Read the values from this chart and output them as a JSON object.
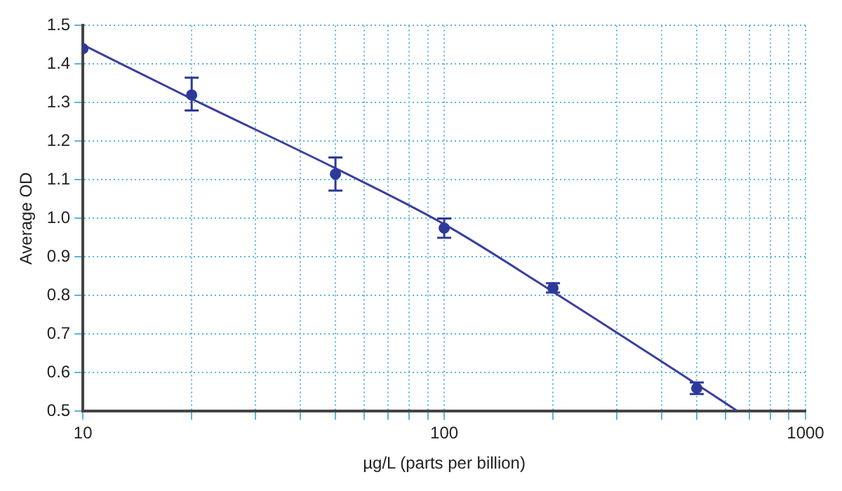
{
  "chart_data": {
    "type": "scatter",
    "xlabel": "µg/L (parts per billion)",
    "ylabel": "Average OD",
    "log": "x",
    "grid": true,
    "legend": false,
    "marker": "circle",
    "xlim": [
      10,
      1000
    ],
    "xticks": [
      10,
      {
        "value": 20,
        "label": null
      },
      {
        "value": 30,
        "label": null
      },
      {
        "value": 40,
        "label": null
      },
      {
        "value": 50,
        "label": null
      },
      {
        "value": 60,
        "label": null
      },
      {
        "value": 70,
        "label": null
      },
      {
        "value": 80,
        "label": null
      },
      {
        "value": 90,
        "label": null
      },
      100,
      {
        "value": 200,
        "label": null
      },
      {
        "value": 300,
        "label": null
      },
      {
        "value": 400,
        "label": null
      },
      {
        "value": 500,
        "label": null
      },
      {
        "value": 600,
        "label": null
      },
      {
        "value": 700,
        "label": null
      },
      {
        "value": 800,
        "label": null
      },
      {
        "value": 900,
        "label": null
      },
      1000
    ],
    "ylim": [
      0.5,
      1.5
    ],
    "yticks": [
      0.5,
      0.6,
      0.7,
      0.8,
      0.9,
      {
        "value": 1,
        "label": "1.0"
      },
      1.1,
      1.2,
      1.3,
      1.4,
      1.5
    ],
    "series": [
      {
        "color": "#2e3a9a",
        "x": [
          10,
          20,
          50,
          100,
          200,
          500
        ],
        "values": [
          1.44,
          1.32,
          1.115,
          0.975,
          0.82,
          0.56
        ],
        "errors": [
          null,
          [
            1.28,
            1.365
          ],
          [
            1.072,
            1.158
          ],
          [
            0.95,
            1.0
          ],
          [
            0.808,
            0.832
          ],
          [
            0.545,
            0.575
          ]
        ]
      },
      {
        "type": "line",
        "color": "#3a3f9e",
        "line_style": "solid",
        "marker": "none",
        "x": [
          10,
          20,
          50,
          100,
          200,
          500,
          650
        ],
        "values": [
          1.45,
          1.31,
          1.13,
          0.985,
          0.81,
          0.57,
          0.5
        ]
      }
    ]
  }
}
